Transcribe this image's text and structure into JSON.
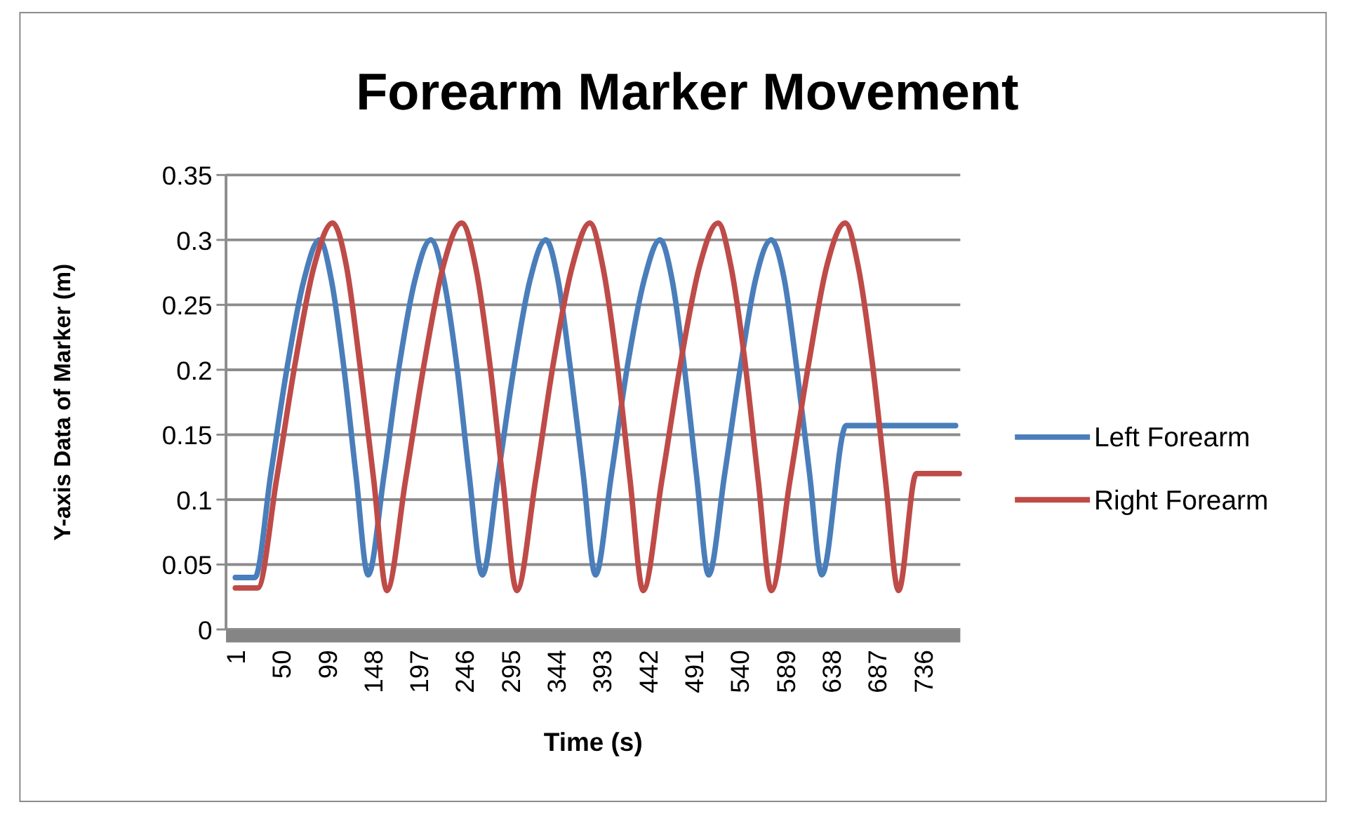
{
  "chart_data": {
    "type": "line",
    "title": "Forearm Marker Movement",
    "xlabel": "Time (s)",
    "ylabel": "Y-axis Data of Marker (m)",
    "xlim": [
      -6,
      776
    ],
    "xticks": [
      1,
      50,
      99,
      148,
      197,
      246,
      295,
      344,
      393,
      442,
      491,
      540,
      589,
      638,
      687,
      736
    ],
    "ylim": [
      0,
      0.35
    ],
    "yticks": [
      0,
      0.05,
      0.1,
      0.15,
      0.2,
      0.25,
      0.3,
      0.35
    ],
    "grid": "y",
    "legend": "right",
    "marker": "none",
    "line_style": "solid",
    "series": [
      {
        "name": "Left Forearm",
        "color": "#4a7ebb",
        "x": [
          1,
          22,
          39,
          56,
          74,
          91,
          104,
          117,
          130,
          143,
          160,
          176,
          193,
          210,
          224,
          238,
          251,
          265,
          282,
          299,
          316,
          333,
          346,
          359,
          373,
          386,
          403,
          420,
          438,
          455,
          468,
          481,
          494,
          507,
          524,
          541,
          557,
          574,
          588,
          601,
          615,
          628,
          654,
          771
        ],
        "values": [
          0.04,
          0.04,
          0.12,
          0.2,
          0.268,
          0.3,
          0.268,
          0.202,
          0.119,
          0.042,
          0.119,
          0.202,
          0.269,
          0.3,
          0.269,
          0.202,
          0.119,
          0.042,
          0.119,
          0.202,
          0.269,
          0.3,
          0.269,
          0.202,
          0.119,
          0.042,
          0.119,
          0.202,
          0.269,
          0.3,
          0.269,
          0.202,
          0.119,
          0.042,
          0.119,
          0.202,
          0.269,
          0.3,
          0.269,
          0.202,
          0.119,
          0.042,
          0.157,
          0.157
        ]
      },
      {
        "name": "Right Forearm",
        "color": "#be4b48",
        "x": [
          1,
          25,
          45,
          65,
          85,
          105,
          120,
          134,
          149,
          163,
          183,
          203,
          223,
          243,
          258,
          273,
          287,
          302,
          322,
          341,
          361,
          380,
          394,
          409,
          423,
          437,
          457,
          477,
          497,
          517,
          531,
          546,
          560,
          574,
          594,
          614,
          633,
          653,
          667,
          682,
          696,
          710,
          729,
          775
        ],
        "values": [
          0.032,
          0.032,
          0.115,
          0.205,
          0.279,
          0.313,
          0.279,
          0.205,
          0.115,
          0.03,
          0.115,
          0.205,
          0.279,
          0.313,
          0.279,
          0.205,
          0.115,
          0.03,
          0.115,
          0.205,
          0.279,
          0.313,
          0.279,
          0.205,
          0.115,
          0.03,
          0.115,
          0.205,
          0.279,
          0.313,
          0.279,
          0.205,
          0.115,
          0.03,
          0.115,
          0.205,
          0.279,
          0.313,
          0.279,
          0.205,
          0.115,
          0.03,
          0.12,
          0.12
        ]
      }
    ]
  }
}
